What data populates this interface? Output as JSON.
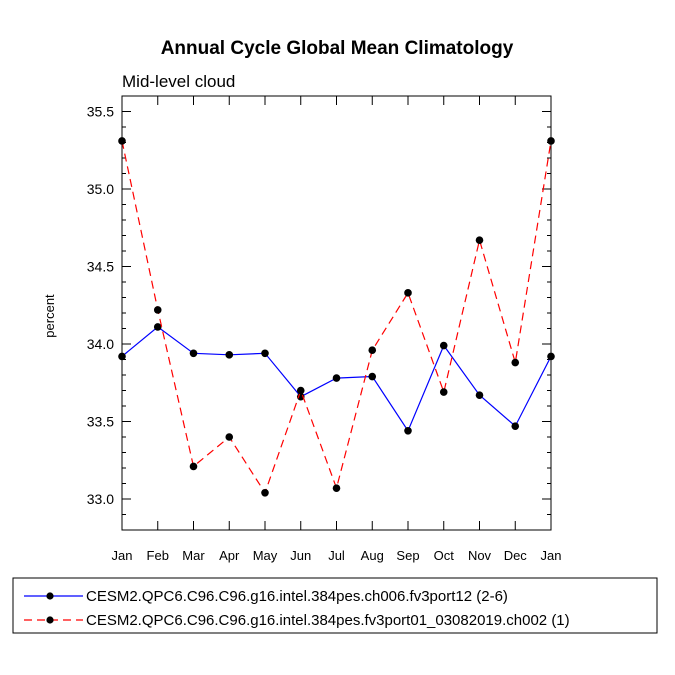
{
  "chart_data": {
    "type": "line",
    "title": "Annual Cycle Global Mean Climatology",
    "subtitle": "Mid-level cloud",
    "xlabel": "",
    "ylabel": "percent",
    "categories": [
      "Jan",
      "Feb",
      "Mar",
      "Apr",
      "May",
      "Jun",
      "Jul",
      "Aug",
      "Sep",
      "Oct",
      "Nov",
      "Dec",
      "Jan"
    ],
    "ylim": [
      32.8,
      35.6
    ],
    "yticks": [
      "33.0",
      "33.5",
      "34.0",
      "34.5",
      "35.0",
      "35.5"
    ],
    "series": [
      {
        "name": "CESM2.QPC6.C96.C96.g16.intel.384pes.ch006.fv3port12 (2-6)",
        "color": "#0000ff",
        "dash": "solid",
        "values": [
          33.92,
          34.11,
          33.94,
          33.93,
          33.94,
          33.66,
          33.78,
          33.79,
          33.44,
          33.99,
          33.67,
          33.47,
          33.92
        ]
      },
      {
        "name": "CESM2.QPC6.C96.C96.g16.intel.384pes.fv3port01_03082019.ch002 (1)",
        "color": "#ff0000",
        "dash": "dashed",
        "values": [
          35.31,
          34.22,
          33.21,
          33.4,
          33.04,
          33.7,
          33.07,
          33.96,
          34.33,
          33.69,
          34.67,
          33.88,
          35.31
        ]
      }
    ]
  }
}
